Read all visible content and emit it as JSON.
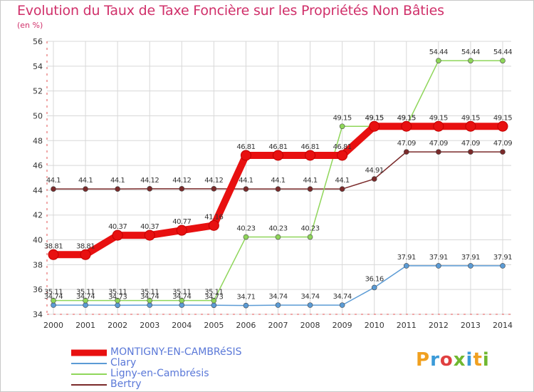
{
  "title": "Evolution du Taux de Taxe Foncière sur les Propriétés Non Bâties",
  "unit": "(en %)",
  "logo": {
    "text": "Proxiti",
    "colors": [
      "#f0a020",
      "#3a9ad8",
      "#e04040",
      "#70b830",
      "#3a9ad8",
      "#f0a020",
      "#70b830"
    ]
  },
  "chart_data": {
    "type": "line",
    "x": [
      2000,
      2001,
      2002,
      2003,
      2004,
      2005,
      2006,
      2007,
      2008,
      2009,
      2010,
      2011,
      2012,
      2013,
      2014
    ],
    "ylim": [
      34,
      56
    ],
    "yticks": [
      34,
      36,
      38,
      40,
      42,
      44,
      46,
      48,
      50,
      52,
      54,
      56
    ],
    "grid": true,
    "series": [
      {
        "name": "MONTIGNY-EN-CAMBRéSIS",
        "color": "#e81010",
        "width": 10,
        "point": 7,
        "values": [
          38.81,
          38.81,
          40.37,
          40.37,
          40.77,
          41.16,
          46.81,
          46.81,
          46.81,
          46.81,
          49.15,
          49.15,
          49.15,
          49.15,
          49.15
        ],
        "labels": [
          "38.81",
          "38.81",
          "40.37",
          "40.37",
          "40.77",
          "41.16",
          "46.81",
          "46.81",
          "46.81",
          "46.81",
          "49.15",
          "49.15",
          "49.15",
          "49.15",
          "49.15"
        ]
      },
      {
        "name": "Clary",
        "color": "#5b9bd5",
        "width": 1.5,
        "point": 3.5,
        "values": [
          34.74,
          34.74,
          34.73,
          34.74,
          34.74,
          34.73,
          34.71,
          34.74,
          34.74,
          34.74,
          36.16,
          37.91,
          37.91,
          37.91,
          37.91
        ],
        "labels": [
          "34.74",
          "34.74",
          "34.73",
          "34.74",
          "34.74",
          "34.73",
          "34.71",
          "34.74",
          "34.74",
          "34.74",
          "36.16",
          "37.91",
          "37.91",
          "37.91",
          "37.91"
        ]
      },
      {
        "name": "Ligny-en-Cambrésis",
        "color": "#8fd65a",
        "width": 1.5,
        "point": 3.5,
        "values": [
          35.11,
          35.11,
          35.11,
          35.11,
          35.11,
          35.11,
          40.23,
          40.23,
          40.23,
          49.15,
          49.15,
          49.15,
          54.44,
          54.44,
          54.44
        ],
        "labels": [
          "35.11",
          "35.11",
          "35.11",
          "35.11",
          "35.11",
          "35.11",
          "40.23",
          "40.23",
          "40.23",
          "49.15",
          "49.15",
          "49.15",
          "54.44",
          "54.44",
          "54.44"
        ]
      },
      {
        "name": "Bertry",
        "color": "#7a2a2a",
        "width": 1.5,
        "point": 3.5,
        "values": [
          44.1,
          44.1,
          44.1,
          44.12,
          44.12,
          44.12,
          44.1,
          44.1,
          44.1,
          44.1,
          44.91,
          47.09,
          47.09,
          47.09,
          47.09
        ],
        "labels": [
          "44.1",
          "44.1",
          "44.1",
          "44.12",
          "44.12",
          "44.12",
          "44.1",
          "44.1",
          "44.1",
          "44.1",
          "44.91",
          "47.09",
          "47.09",
          "47.09",
          "47.09"
        ]
      }
    ]
  }
}
